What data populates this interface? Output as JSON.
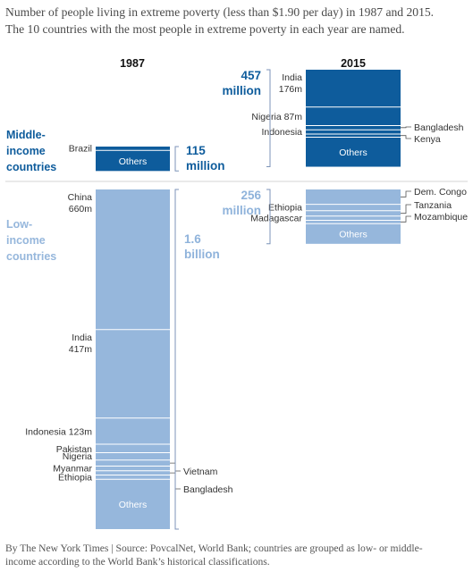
{
  "caption": {
    "line1": "Number of people living in extreme poverty (less than $1.90 per day) in 1987 and 2015.",
    "line2": "The 10 countries with the most people in extreme poverty in each year are named."
  },
  "footer": {
    "line1": "By The New York Times | Source: PovcalNet, World Bank; countries are grouped as low- or middle-",
    "line2": "income according to the World Bank’s historical classifications."
  },
  "colors": {
    "middle": "#0e5c9c",
    "low": "#96b7dc",
    "divider": "#d4d4d4",
    "bracket": "#7c93b8"
  },
  "chart_data": {
    "type": "bar",
    "subtype": "stacked",
    "years": [
      "1987",
      "2015"
    ],
    "groups": {
      "middle": {
        "label_lines": [
          "Middle-",
          "income",
          "countries"
        ]
      },
      "low": {
        "label_lines": [
          "Low-",
          "income",
          "countries"
        ]
      }
    },
    "stacks": [
      {
        "year": "1987",
        "group": "middle",
        "total_line1": "115",
        "total_line2": "million",
        "total_value": 115,
        "segments": [
          {
            "label": "Brazil",
            "value": 18
          },
          {
            "label": "Others",
            "value": 97
          }
        ]
      },
      {
        "year": "1987",
        "group": "low",
        "total_line1": "1.6",
        "total_line2": "billion",
        "total_value": 1600,
        "segments": [
          {
            "label_lines": [
              "China",
              "660m"
            ],
            "value": 660
          },
          {
            "label_lines": [
              "India",
              "417m"
            ],
            "value": 417
          },
          {
            "label": "Indonesia 123m",
            "value": 123
          },
          {
            "label": "Pakistan",
            "value": 40
          },
          {
            "label": "Nigeria",
            "value": 35
          },
          {
            "label": "Vietnam",
            "value": 28
          },
          {
            "label": "Myanmar",
            "value": 22
          },
          {
            "label": "Bangladesh",
            "value": 20
          },
          {
            "label": "Ethiopia",
            "value": 20
          },
          {
            "label": "Others",
            "value": 235
          }
        ]
      },
      {
        "year": "2015",
        "group": "middle",
        "total_line1": "457",
        "total_line2": "million",
        "total_value": 457,
        "segments": [
          {
            "label_lines": [
              "India",
              "176m"
            ],
            "value": 176
          },
          {
            "label": "Nigeria 87m",
            "value": 87
          },
          {
            "label": "Bangladesh",
            "value": 20
          },
          {
            "label": "Indonesia",
            "value": 20
          },
          {
            "label": "Kenya",
            "value": 15
          },
          {
            "label": "Others",
            "value": 139
          }
        ]
      },
      {
        "year": "2015",
        "group": "low",
        "total_line1": "256",
        "total_line2": "million",
        "total_value": 256,
        "segments": [
          {
            "label": "Dem. Congo",
            "value": 70
          },
          {
            "label": "Ethiopia",
            "value": 30
          },
          {
            "label": "Tanzania",
            "value": 25
          },
          {
            "label": "Madagascar",
            "value": 20
          },
          {
            "label": "Mozambique",
            "value": 16
          },
          {
            "label": "Others",
            "value": 95
          }
        ]
      }
    ]
  }
}
